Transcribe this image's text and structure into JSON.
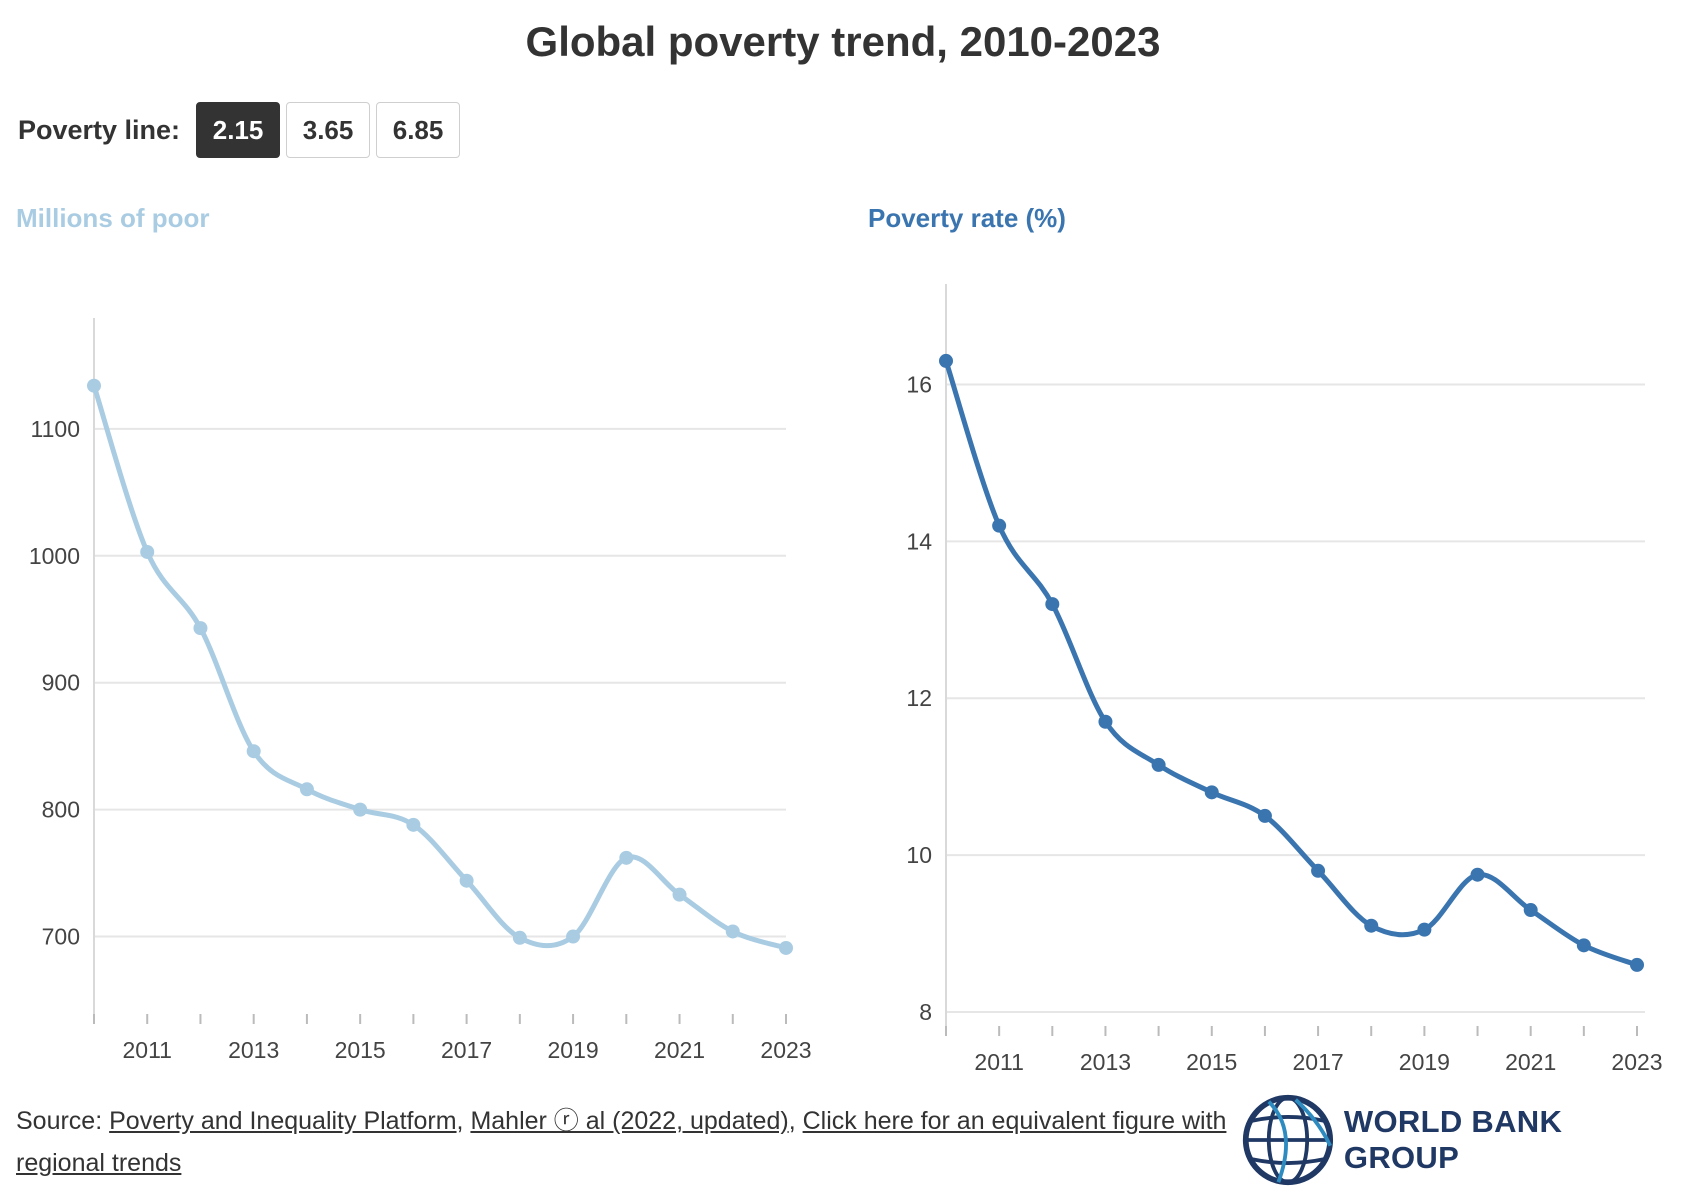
{
  "title": "Global poverty trend, 2010-2023",
  "controls": {
    "label": "Poverty line:",
    "options": [
      "2.15",
      "3.65",
      "6.85"
    ],
    "selected": "2.15"
  },
  "colors": {
    "left_series": "#a9cce3",
    "right_series": "#3a75b0"
  },
  "chart_data": [
    {
      "type": "line",
      "title": "Millions of poor",
      "x": [
        2010,
        2011,
        2012,
        2013,
        2014,
        2015,
        2016,
        2017,
        2018,
        2019,
        2020,
        2021,
        2022,
        2023
      ],
      "y": [
        1134,
        1003,
        943,
        846,
        816,
        800,
        788,
        744,
        699,
        700,
        762,
        733,
        704,
        691
      ],
      "xticks": [
        "2011",
        "2013",
        "2015",
        "2017",
        "2019",
        "2021",
        "2023"
      ],
      "yticks": [
        "700",
        "800",
        "900",
        "1000",
        "1100"
      ],
      "ylim": [
        650,
        1170
      ],
      "xlim": [
        2010,
        2023
      ],
      "grid": true
    },
    {
      "type": "line",
      "title": "Poverty rate (%)",
      "x": [
        2010,
        2011,
        2012,
        2013,
        2014,
        2015,
        2016,
        2017,
        2018,
        2019,
        2020,
        2021,
        2022,
        2023
      ],
      "y": [
        16.3,
        14.2,
        13.2,
        11.7,
        11.15,
        10.8,
        10.5,
        9.8,
        9.1,
        9.05,
        9.75,
        9.3,
        8.85,
        8.6
      ],
      "xticks": [
        "2011",
        "2013",
        "2015",
        "2017",
        "2019",
        "2021",
        "2023"
      ],
      "yticks": [
        "8",
        "10",
        "12",
        "14",
        "16"
      ],
      "ylim": [
        8,
        17
      ],
      "xlim": [
        2010,
        2023
      ],
      "grid": true
    }
  ],
  "source": {
    "prefix": "Source:",
    "link1": "Poverty and Inequality Platform",
    "link2": "Mahler ⓡ al (2022, updated)",
    "link3": "Click here for an equivalent figure with regional trends"
  },
  "logo": {
    "name": "WORLD BANK GROUP",
    "icon": "globe-icon"
  }
}
